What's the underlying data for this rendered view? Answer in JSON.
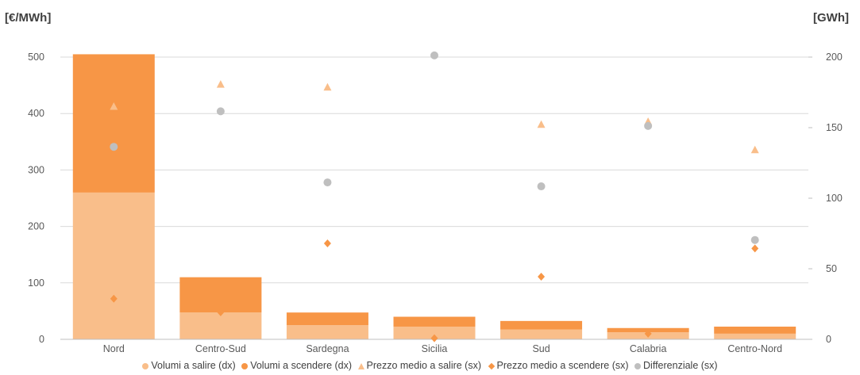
{
  "chart_data": {
    "type": "bar",
    "categories": [
      "Nord",
      "Centro-Sud",
      "Sardegna",
      "Sicilia",
      "Sud",
      "Calabria",
      "Centro-Nord"
    ],
    "ylabel_left": "[€/MWh]",
    "ylabel_right": "[GWh]",
    "y_left_range": [
      0,
      500
    ],
    "y_left_ticks": [
      "0",
      "100",
      "200",
      "300",
      "400",
      "500"
    ],
    "y_right_range": [
      0,
      200
    ],
    "y_right_ticks": [
      "0",
      "50",
      "100",
      "150",
      "200"
    ],
    "grid": true,
    "legend_position": "bottom",
    "series": [
      {
        "name": "Volumi a salire (dx)",
        "kind": "stacked-bar",
        "axis": "right",
        "color": "#f9be8a",
        "values": [
          104,
          19,
          10,
          9,
          7,
          5,
          4
        ]
      },
      {
        "name": "Volumi a scendere (dx)",
        "kind": "stacked-bar",
        "axis": "right",
        "color": "#f79646",
        "values": [
          98,
          25,
          9,
          7,
          6,
          3,
          5
        ]
      },
      {
        "name": "Prezzo medio a salire (sx)",
        "kind": "triangle",
        "axis": "left",
        "color": "#f9be8a",
        "values": [
          413,
          452,
          447,
          null,
          381,
          386,
          336
        ]
      },
      {
        "name": "Prezzo medio a scendere (sx)",
        "kind": "diamond",
        "axis": "left",
        "color": "#f79646",
        "values": [
          72,
          48,
          170,
          2,
          111,
          10,
          161
        ]
      },
      {
        "name": "Differenziale (sx)",
        "kind": "circle",
        "axis": "left",
        "color": "#bfbfbf",
        "values": [
          341,
          404,
          278,
          503,
          271,
          378,
          176
        ]
      }
    ]
  }
}
